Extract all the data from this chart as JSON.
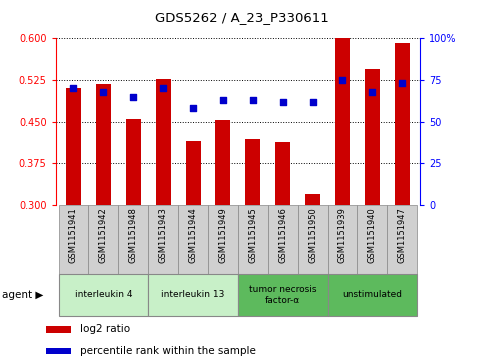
{
  "title": "GDS5262 / A_23_P330611",
  "samples": [
    "GSM1151941",
    "GSM1151942",
    "GSM1151948",
    "GSM1151943",
    "GSM1151944",
    "GSM1151949",
    "GSM1151945",
    "GSM1151946",
    "GSM1151950",
    "GSM1151939",
    "GSM1151940",
    "GSM1151947"
  ],
  "log2_ratio": [
    0.51,
    0.518,
    0.455,
    0.527,
    0.415,
    0.453,
    0.418,
    0.413,
    0.32,
    0.6,
    0.545,
    0.592
  ],
  "percentile_rank": [
    70,
    68,
    65,
    70,
    58,
    63,
    63,
    62,
    62,
    75,
    68,
    73
  ],
  "agents": [
    {
      "label": "interleukin 4",
      "start": 0,
      "end": 3,
      "color": "#c8f0c8"
    },
    {
      "label": "interleukin 13",
      "start": 3,
      "end": 6,
      "color": "#c8f0c8"
    },
    {
      "label": "tumor necrosis\nfactor-α",
      "start": 6,
      "end": 9,
      "color": "#5dba5d"
    },
    {
      "label": "unstimulated",
      "start": 9,
      "end": 12,
      "color": "#5dba5d"
    }
  ],
  "ylim_left": [
    0.3,
    0.6
  ],
  "ylim_right": [
    0,
    100
  ],
  "yticks_left": [
    0.3,
    0.375,
    0.45,
    0.525,
    0.6
  ],
  "yticks_right": [
    0,
    25,
    50,
    75,
    100
  ],
  "bar_color": "#cc0000",
  "dot_color": "#0000cc",
  "legend_bar_label": "log2 ratio",
  "legend_dot_label": "percentile rank within the sample",
  "bar_width": 0.5,
  "agent_label": "agent"
}
